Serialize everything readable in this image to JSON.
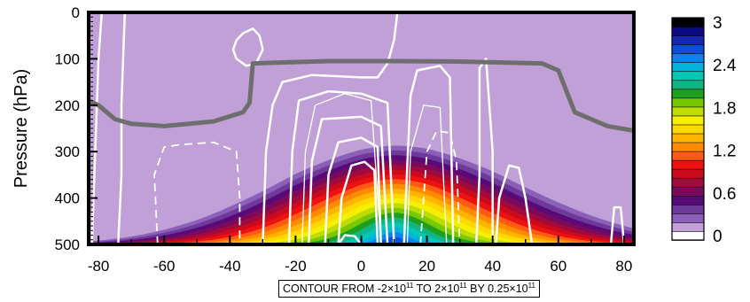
{
  "chart_data": {
    "type": "contour",
    "ylabel": "Pressure (hPa)",
    "xlabel": "",
    "xlim": [
      -83,
      83
    ],
    "ylim": [
      500,
      0
    ],
    "x_ticks": [
      "-80",
      "-60",
      "-40",
      "-20",
      "0",
      "20",
      "40",
      "60",
      "80"
    ],
    "y_ticks": [
      "0",
      "100",
      "200",
      "300",
      "400",
      "500"
    ],
    "colorbar": {
      "min": 0,
      "max": 3,
      "step": 0.15,
      "labels": [
        "3",
        "2.4",
        "1.8",
        "1.2",
        "0.6",
        "0"
      ],
      "colors": [
        "#ffffff",
        "#c0a0d6",
        "#8c60b9",
        "#6e3a9a",
        "#5a0a78",
        "#7a0a5c",
        "#a00a3c",
        "#cc0a1e",
        "#ee1111",
        "#ff5a14",
        "#ff8c00",
        "#ffb400",
        "#ffd800",
        "#f5f000",
        "#bedc00",
        "#78c800",
        "#1ea01e",
        "#12b482",
        "#00c8b4",
        "#00b4dc",
        "#0a82f0",
        "#0a50dc",
        "#1428b4",
        "#0a0a82",
        "#000000"
      ]
    },
    "background_color": "#c0a0d6",
    "tropopause_line_color": "#6e6e6e",
    "contour_line_color": "#ffffff",
    "note_parts": {
      "prefix": "CONTOUR FROM -2×10",
      "exp1": "11",
      "mid1": " TO 2×10",
      "exp2": "11",
      "mid2": " BY 0.25×10",
      "exp3": "11"
    }
  }
}
